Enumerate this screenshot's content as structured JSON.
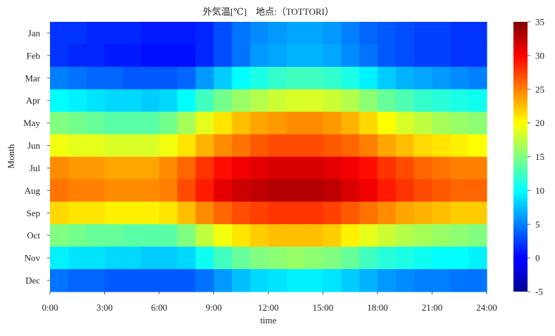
{
  "chart_data": {
    "type": "heatmap",
    "title": "外気温[℃]　地点:（TOTTORI）",
    "xlabel": "time",
    "ylabel": "Month",
    "x_ticks": [
      "0:00",
      "3:00",
      "6:00",
      "9:00",
      "12:00",
      "15:00",
      "18:00",
      "21:00",
      "24:00"
    ],
    "y_ticks": [
      "Jan",
      "Feb",
      "Mar",
      "Apr",
      "May",
      "Jun",
      "Jul",
      "Aug",
      "Sep",
      "Oct",
      "Nov",
      "Dec"
    ],
    "hours": [
      0,
      1,
      2,
      3,
      4,
      5,
      6,
      7,
      8,
      9,
      10,
      11,
      12,
      13,
      14,
      15,
      16,
      17,
      18,
      19,
      20,
      21,
      22,
      23
    ],
    "colorbar": {
      "min": -5,
      "max": 35,
      "ticks": [
        -5,
        0,
        5,
        10,
        15,
        20,
        25,
        30,
        35
      ],
      "colormap": "jet"
    },
    "monthly_hourly_mean": [
      {
        "month": "Jan",
        "values": [
          2,
          2,
          1.5,
          1.5,
          1.5,
          1,
          1,
          1,
          1.5,
          3,
          4.5,
          5.5,
          6,
          6.5,
          6.5,
          6,
          5,
          4,
          3.5,
          3,
          2.5,
          2.5,
          2,
          2
        ]
      },
      {
        "month": "Feb",
        "values": [
          2,
          1.5,
          1.5,
          1,
          1,
          0.5,
          0.5,
          0.5,
          1.5,
          3,
          4.5,
          6,
          6.5,
          7,
          7,
          6.5,
          5.5,
          4.5,
          3.5,
          3,
          2.5,
          2.5,
          2,
          2
        ]
      },
      {
        "month": "Mar",
        "values": [
          5,
          4.5,
          4,
          4,
          3.5,
          3.5,
          3.5,
          4,
          6,
          8,
          10,
          11,
          12,
          12.5,
          12.5,
          12,
          11,
          9.5,
          8,
          7,
          6.5,
          6,
          5.5,
          5
        ]
      },
      {
        "month": "Apr",
        "values": [
          10,
          9.5,
          9,
          8.5,
          8.5,
          8,
          8.5,
          10,
          12.5,
          14.5,
          16,
          17,
          18,
          18.5,
          18.5,
          18,
          17,
          15.5,
          14,
          13,
          12,
          11.5,
          11,
          10.5
        ]
      },
      {
        "month": "May",
        "values": [
          15,
          14.5,
          14,
          13.5,
          13.5,
          13.5,
          14.5,
          16.5,
          19,
          21,
          22.5,
          23.5,
          24,
          24.5,
          24.5,
          24,
          23,
          21.5,
          20,
          18.5,
          17.5,
          16.5,
          16,
          15.5
        ]
      },
      {
        "month": "Jun",
        "values": [
          19.5,
          19,
          19,
          18.5,
          18.5,
          18.5,
          19.5,
          21,
          23,
          24.5,
          25.5,
          26.5,
          27,
          27,
          27,
          26.5,
          26,
          25,
          23.5,
          22.5,
          21.5,
          21,
          20.5,
          20
        ]
      },
      {
        "month": "Jul",
        "values": [
          24.5,
          24,
          24,
          23.5,
          23.5,
          23.5,
          24.5,
          26,
          28,
          29.5,
          30.5,
          31,
          31.5,
          31.5,
          31.5,
          31,
          30.5,
          29.5,
          28,
          27,
          26,
          25.5,
          25,
          25
        ]
      },
      {
        "month": "Aug",
        "values": [
          25.5,
          25,
          25,
          24.5,
          24.5,
          24.5,
          25,
          27,
          29,
          31,
          32,
          32.5,
          33,
          33,
          33,
          32.5,
          31.5,
          30.5,
          29,
          28,
          27,
          26.5,
          26,
          26
        ]
      },
      {
        "month": "Sep",
        "values": [
          21.5,
          21,
          21,
          20.5,
          20.5,
          20.5,
          21,
          22.5,
          24.5,
          26,
          27,
          27.5,
          28,
          28,
          28,
          27.5,
          26.5,
          25.5,
          24.5,
          23.5,
          23,
          22.5,
          22,
          22
        ]
      },
      {
        "month": "Oct",
        "values": [
          15,
          14.5,
          14,
          14,
          13.5,
          13.5,
          13.5,
          15,
          17.5,
          19.5,
          21,
          22,
          22.5,
          22.5,
          22.5,
          22,
          20.5,
          19,
          18,
          17,
          16.5,
          16,
          15.5,
          15
        ]
      },
      {
        "month": "Nov",
        "values": [
          9.5,
          9,
          9,
          8.5,
          8.5,
          8,
          8,
          8.5,
          10.5,
          12.5,
          14,
          15,
          15.5,
          16,
          15.5,
          15,
          14,
          12.5,
          11.5,
          11,
          10.5,
          10,
          10,
          9.5
        ]
      },
      {
        "month": "Dec",
        "values": [
          4.5,
          4,
          4,
          3.5,
          3.5,
          3.5,
          3.5,
          3.5,
          4.5,
          6,
          7.5,
          8.5,
          9,
          9.5,
          9.5,
          9,
          8,
          7,
          6,
          5.5,
          5,
          5,
          4.5,
          4.5
        ]
      }
    ]
  }
}
